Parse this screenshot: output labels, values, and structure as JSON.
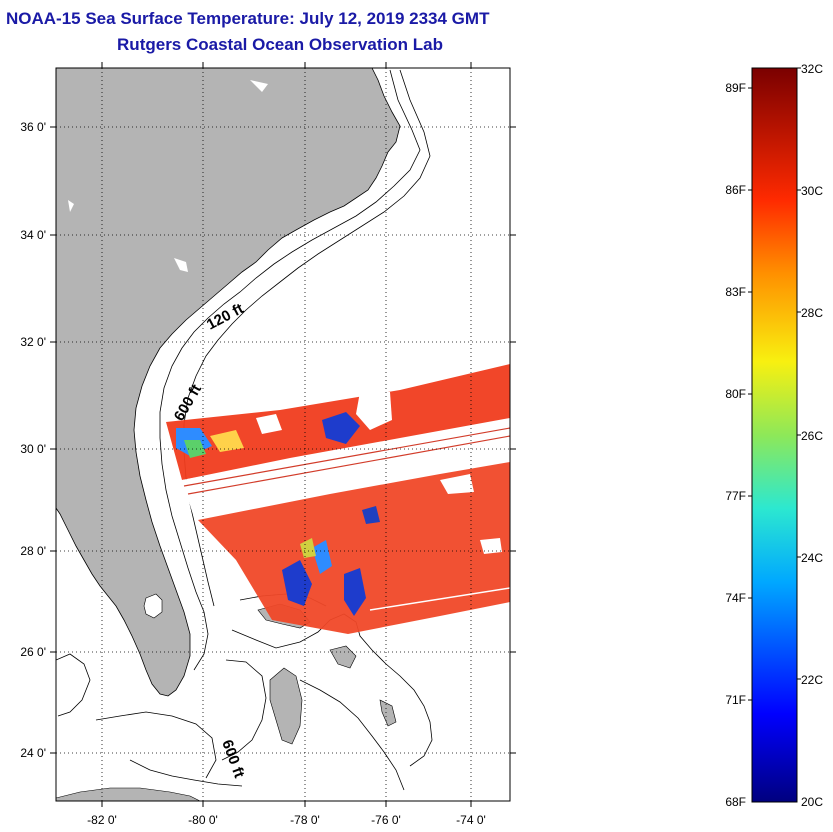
{
  "header": {
    "title": "NOAA-15 Sea Surface Temperature:  July 12, 2019 2334 GMT",
    "subtitle": "Rutgers Coastal Ocean Observation Lab"
  },
  "map": {
    "lat_labels": [
      "36 0'",
      "34 0'",
      "32 0'",
      "30 0'",
      "28 0'",
      "26 0'",
      "24 0'"
    ],
    "lon_labels": [
      "-82 0'",
      "-80 0'",
      "-78 0'",
      "-76 0'",
      "-74 0'"
    ],
    "contour_labels": [
      "120 ft",
      "600 ft",
      "600 ft"
    ],
    "colors": {
      "land": "#b4b4b4",
      "ocean": "#ffffff",
      "warm": "#f03c1e",
      "cool": "#1e3ccc"
    }
  },
  "colorbar": {
    "fahrenheit_labels": [
      "89F",
      "86F",
      "83F",
      "80F",
      "77F",
      "74F",
      "71F",
      "68F"
    ],
    "celsius_labels": [
      "32C",
      "30C",
      "28C",
      "26C",
      "24C",
      "22C",
      "20C"
    ],
    "range_c": [
      20,
      32
    ]
  }
}
